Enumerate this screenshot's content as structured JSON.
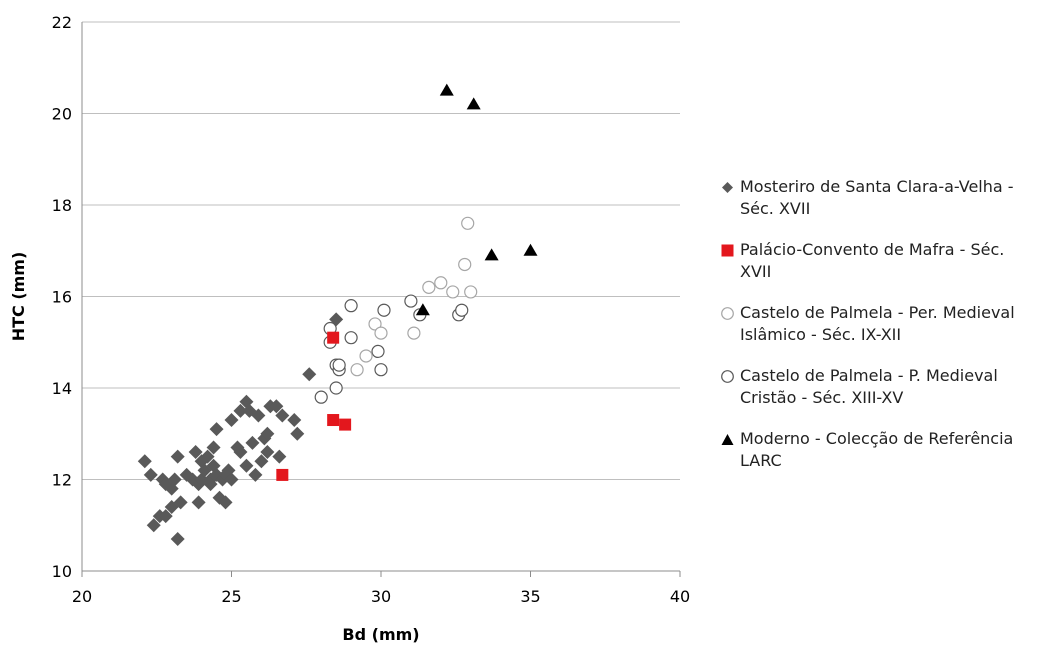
{
  "chart_data": {
    "type": "scatter",
    "title": "",
    "xlabel": "Bd (mm)",
    "ylabel": "HTC (mm)",
    "xlim": [
      20,
      40
    ],
    "ylim": [
      10,
      22
    ],
    "x_ticks": [
      "20",
      "25",
      "30",
      "35",
      "40"
    ],
    "y_ticks": [
      "10",
      "12",
      "14",
      "16",
      "18",
      "20",
      "22"
    ],
    "grid": "horizontal",
    "legend_position": "right",
    "series": [
      {
        "name": "Mosteriro de Santa Clara-a-Velha - Séc. XVII",
        "marker": "diamond",
        "color": "#595959",
        "points": [
          [
            22.1,
            12.4
          ],
          [
            22.3,
            12.1
          ],
          [
            22.4,
            11.0
          ],
          [
            22.6,
            11.2
          ],
          [
            22.7,
            12.0
          ],
          [
            22.8,
            11.9
          ],
          [
            22.8,
            11.2
          ],
          [
            23.0,
            11.4
          ],
          [
            23.0,
            11.8
          ],
          [
            23.1,
            12.0
          ],
          [
            23.2,
            12.5
          ],
          [
            23.2,
            10.7
          ],
          [
            23.3,
            11.5
          ],
          [
            23.5,
            12.1
          ],
          [
            23.7,
            12.0
          ],
          [
            23.8,
            12.6
          ],
          [
            23.9,
            11.9
          ],
          [
            23.9,
            11.5
          ],
          [
            24.0,
            12.4
          ],
          [
            24.0,
            12.0
          ],
          [
            24.1,
            12.2
          ],
          [
            24.2,
            12.5
          ],
          [
            24.3,
            12.0
          ],
          [
            24.3,
            11.9
          ],
          [
            24.4,
            12.7
          ],
          [
            24.4,
            12.3
          ],
          [
            24.5,
            13.1
          ],
          [
            24.5,
            12.1
          ],
          [
            24.6,
            11.6
          ],
          [
            24.7,
            12.0
          ],
          [
            24.8,
            12.1
          ],
          [
            24.8,
            11.5
          ],
          [
            24.9,
            12.2
          ],
          [
            25.0,
            12.0
          ],
          [
            25.0,
            13.3
          ],
          [
            25.2,
            12.7
          ],
          [
            25.3,
            12.6
          ],
          [
            25.3,
            13.5
          ],
          [
            25.5,
            13.7
          ],
          [
            25.5,
            12.3
          ],
          [
            25.6,
            13.5
          ],
          [
            25.7,
            12.8
          ],
          [
            25.8,
            12.1
          ],
          [
            25.9,
            13.4
          ],
          [
            26.0,
            12.4
          ],
          [
            26.1,
            12.9
          ],
          [
            26.2,
            13.0
          ],
          [
            26.2,
            12.6
          ],
          [
            26.3,
            13.6
          ],
          [
            26.5,
            13.6
          ],
          [
            26.6,
            12.5
          ],
          [
            26.7,
            13.4
          ],
          [
            27.1,
            13.3
          ],
          [
            27.2,
            13.0
          ],
          [
            27.6,
            14.3
          ],
          [
            28.5,
            15.5
          ]
        ]
      },
      {
        "name": "Palácio-Convento de Mafra - Séc. XVII",
        "marker": "square",
        "color": "#e3171d",
        "points": [
          [
            26.7,
            12.1
          ],
          [
            28.4,
            13.3
          ],
          [
            28.4,
            15.1
          ],
          [
            28.8,
            13.2
          ]
        ]
      },
      {
        "name": "Castelo de Palmela - Per. Medieval Islâmico - Séc. IX-XII",
        "marker": "circle-open",
        "color": "#a6a6a6",
        "points": [
          [
            29.2,
            14.4
          ],
          [
            29.5,
            14.7
          ],
          [
            29.8,
            15.4
          ],
          [
            30.0,
            15.2
          ],
          [
            31.1,
            15.2
          ],
          [
            31.6,
            16.2
          ],
          [
            32.0,
            16.3
          ],
          [
            32.4,
            16.1
          ],
          [
            32.8,
            16.7
          ],
          [
            32.9,
            17.6
          ],
          [
            33.0,
            16.1
          ]
        ]
      },
      {
        "name": "Castelo de Palmela - P. Medieval Cristão - Séc. XIII-XV",
        "marker": "circle-open",
        "color": "#595959",
        "points": [
          [
            28.0,
            13.8
          ],
          [
            28.3,
            15.3
          ],
          [
            28.3,
            15.0
          ],
          [
            28.5,
            14.5
          ],
          [
            28.5,
            14.0
          ],
          [
            28.6,
            14.4
          ],
          [
            28.6,
            14.5
          ],
          [
            29.0,
            15.8
          ],
          [
            29.0,
            15.1
          ],
          [
            29.9,
            14.8
          ],
          [
            30.0,
            14.4
          ],
          [
            30.1,
            15.7
          ],
          [
            31.0,
            15.9
          ],
          [
            31.3,
            15.6
          ],
          [
            32.6,
            15.6
          ],
          [
            32.7,
            15.7
          ]
        ]
      },
      {
        "name": "Moderno - Colecção de Referência LARC",
        "marker": "triangle",
        "color": "#000000",
        "points": [
          [
            31.4,
            15.7
          ],
          [
            32.2,
            20.5
          ],
          [
            33.1,
            20.2
          ],
          [
            33.7,
            16.9
          ],
          [
            35.0,
            17.0
          ]
        ]
      }
    ]
  },
  "legend": {
    "items": [
      {
        "line1": "Mosteriro de Santa Clara-a-Velha -",
        "line2": "Séc. XVII"
      },
      {
        "line1": "Palácio-Convento de Mafra - Séc.",
        "line2": "XVII"
      },
      {
        "line1": "Castelo de Palmela - Per. Medieval",
        "line2": "Islâmico - Séc. IX-XII"
      },
      {
        "line1": "Castelo de Palmela - P. Medieval",
        "line2": "Cristão - Séc. XIII-XV"
      },
      {
        "line1": "Moderno - Colecção de Referência",
        "line2": "LARC"
      }
    ]
  }
}
